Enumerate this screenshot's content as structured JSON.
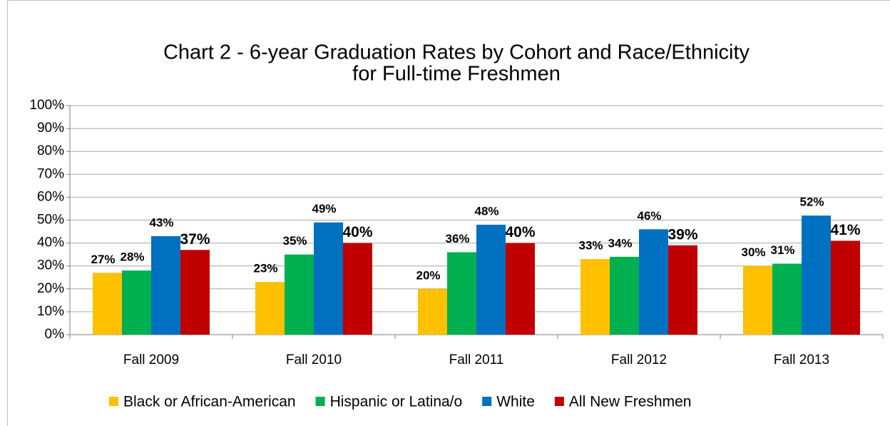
{
  "chart_data": {
    "type": "bar",
    "title": [
      "Chart 2 - 6-year Graduation Rates by Cohort and Race/Ethnicity",
      "for Full-time Freshmen"
    ],
    "categories": [
      "Fall 2009",
      "Fall 2010",
      "Fall 2011",
      "Fall 2012",
      "Fall 2013"
    ],
    "series": [
      {
        "name": "Black or African-American",
        "color": "#ffc000",
        "values": [
          27,
          23,
          20,
          33,
          30
        ],
        "value_labels": [
          "27%",
          "23%",
          "20%",
          "33%",
          "30%"
        ]
      },
      {
        "name": "Hispanic or Latina/o",
        "color": "#00b050",
        "values": [
          28,
          35,
          36,
          34,
          31
        ],
        "value_labels": [
          "28%",
          "35%",
          "36%",
          "34%",
          "31%"
        ]
      },
      {
        "name": "White",
        "color": "#0070c0",
        "values": [
          43,
          49,
          48,
          46,
          52
        ],
        "value_labels": [
          "43%",
          "49%",
          "48%",
          "46%",
          "52%"
        ]
      },
      {
        "name": "All New Freshmen",
        "color": "#c00000",
        "values": [
          37,
          40,
          40,
          39,
          41
        ],
        "value_labels": [
          "37%",
          "40%",
          "40%",
          "39%",
          "41%"
        ]
      }
    ],
    "ylim": [
      0,
      100
    ],
    "yticks": [
      {
        "value": 0,
        "label": "0%"
      },
      {
        "value": 10,
        "label": "10%"
      },
      {
        "value": 20,
        "label": "20%"
      },
      {
        "value": 30,
        "label": "30%"
      },
      {
        "value": 40,
        "label": "40%"
      },
      {
        "value": 50,
        "label": "50%"
      },
      {
        "value": 60,
        "label": "60%"
      },
      {
        "value": 70,
        "label": "70%"
      },
      {
        "value": 80,
        "label": "80%"
      },
      {
        "value": 90,
        "label": "90%"
      },
      {
        "value": 100,
        "label": "100%"
      }
    ],
    "grid": true,
    "legend": "bottom"
  }
}
